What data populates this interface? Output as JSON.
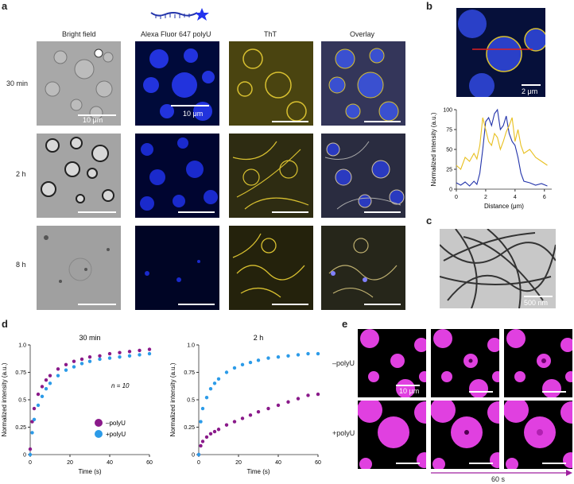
{
  "panels": {
    "a": "a",
    "b": "b",
    "c": "c",
    "d": "d",
    "e": "e"
  },
  "a": {
    "columns": [
      "Bright field",
      "Alexa Fluor 647 polyU",
      "ThT",
      "Overlay"
    ],
    "rows": [
      "30 min",
      "2 h",
      "8 h"
    ],
    "scale_bf": "10 μm",
    "scale_af": "10 μm"
  },
  "b": {
    "scale": "2 μm"
  },
  "c": {
    "scale": "500 nm"
  },
  "e": {
    "rows": [
      "–polyU",
      "+polyU"
    ],
    "scale": "10 μm",
    "time": "60 s"
  },
  "colors": {
    "blue_channel": "#2233dd",
    "tht_yellow": "#e8d030",
    "purple": "#8a1a8a",
    "light_blue": "#2c9be8",
    "magenta": "#e040e0"
  },
  "chart_data": [
    {
      "type": "line",
      "panel": "b",
      "xlabel": "Distance (μm)",
      "ylabel": "Normalized intensity (a.u.)",
      "xlim": [
        0,
        6.5
      ],
      "ylim": [
        0,
        100
      ],
      "xticks": [
        0,
        2,
        4,
        6
      ],
      "yticks": [
        0,
        25,
        50,
        75,
        100
      ],
      "series": [
        {
          "color": "#2233aa",
          "x": [
            0,
            0.3,
            0.6,
            0.9,
            1.2,
            1.4,
            1.6,
            1.8,
            2.0,
            2.2,
            2.4,
            2.6,
            2.8,
            3.0,
            3.2,
            3.4,
            3.6,
            3.8,
            4.0,
            4.2,
            4.4,
            4.6,
            5.0,
            5.4,
            5.8,
            6.2
          ],
          "y": [
            8,
            5,
            9,
            4,
            10,
            6,
            20,
            50,
            85,
            90,
            80,
            95,
            100,
            75,
            80,
            92,
            70,
            60,
            55,
            40,
            20,
            10,
            8,
            5,
            7,
            4
          ]
        },
        {
          "color": "#e8c020",
          "x": [
            0,
            0.3,
            0.6,
            0.9,
            1.2,
            1.4,
            1.6,
            1.8,
            2.0,
            2.2,
            2.4,
            2.6,
            2.8,
            3.0,
            3.2,
            3.4,
            3.6,
            3.8,
            4.0,
            4.2,
            4.4,
            4.6,
            5.0,
            5.4,
            5.8,
            6.2
          ],
          "y": [
            30,
            25,
            40,
            35,
            45,
            38,
            55,
            90,
            75,
            60,
            55,
            70,
            65,
            50,
            60,
            72,
            80,
            90,
            60,
            75,
            55,
            45,
            50,
            40,
            35,
            30
          ]
        }
      ]
    },
    {
      "type": "scatter",
      "panel": "d-left",
      "title": "30 min",
      "xlabel": "Time (s)",
      "ylabel": "Normalized intensity (a.u.)",
      "annotation": "n = 10",
      "xlim": [
        0,
        60
      ],
      "ylim": [
        0,
        1
      ],
      "xticks": [
        0,
        20,
        40,
        60
      ],
      "yticks": [
        0,
        0.25,
        0.5,
        0.75,
        1.0
      ],
      "series": [
        {
          "name": "–polyU",
          "color": "#8a1a8a",
          "x": [
            0,
            1,
            2,
            4,
            6,
            8,
            10,
            14,
            18,
            22,
            26,
            30,
            35,
            40,
            45,
            50,
            55,
            60
          ],
          "y": [
            0.05,
            0.3,
            0.42,
            0.55,
            0.62,
            0.68,
            0.72,
            0.78,
            0.82,
            0.85,
            0.87,
            0.89,
            0.9,
            0.92,
            0.93,
            0.94,
            0.95,
            0.96
          ]
        },
        {
          "name": "+polyU",
          "color": "#2c9be8",
          "x": [
            0,
            1,
            2,
            4,
            6,
            8,
            10,
            14,
            18,
            22,
            26,
            30,
            35,
            40,
            45,
            50,
            55,
            60
          ],
          "y": [
            0.0,
            0.2,
            0.32,
            0.45,
            0.53,
            0.6,
            0.65,
            0.72,
            0.77,
            0.8,
            0.83,
            0.85,
            0.87,
            0.88,
            0.89,
            0.9,
            0.91,
            0.92
          ]
        }
      ]
    },
    {
      "type": "scatter",
      "panel": "d-right",
      "title": "2 h",
      "xlabel": "Time (s)",
      "ylabel": "Normalized intensity (a.u.)",
      "xlim": [
        0,
        60
      ],
      "ylim": [
        0,
        1
      ],
      "xticks": [
        0,
        20,
        40,
        60
      ],
      "yticks": [
        0,
        0.25,
        0.5,
        0.75,
        1.0
      ],
      "series": [
        {
          "name": "–polyU",
          "color": "#8a1a8a",
          "x": [
            0,
            1,
            2,
            4,
            6,
            8,
            10,
            14,
            18,
            22,
            26,
            30,
            35,
            40,
            45,
            50,
            55,
            60
          ],
          "y": [
            0.0,
            0.08,
            0.12,
            0.16,
            0.19,
            0.21,
            0.23,
            0.27,
            0.3,
            0.33,
            0.36,
            0.39,
            0.42,
            0.45,
            0.48,
            0.51,
            0.54,
            0.55
          ]
        },
        {
          "name": "+polyU",
          "color": "#2c9be8",
          "x": [
            0,
            1,
            2,
            4,
            6,
            8,
            10,
            14,
            18,
            22,
            26,
            30,
            35,
            40,
            45,
            50,
            55,
            60
          ],
          "y": [
            0.0,
            0.3,
            0.42,
            0.52,
            0.6,
            0.65,
            0.69,
            0.75,
            0.79,
            0.82,
            0.84,
            0.86,
            0.88,
            0.89,
            0.9,
            0.91,
            0.92,
            0.92
          ]
        }
      ]
    }
  ]
}
